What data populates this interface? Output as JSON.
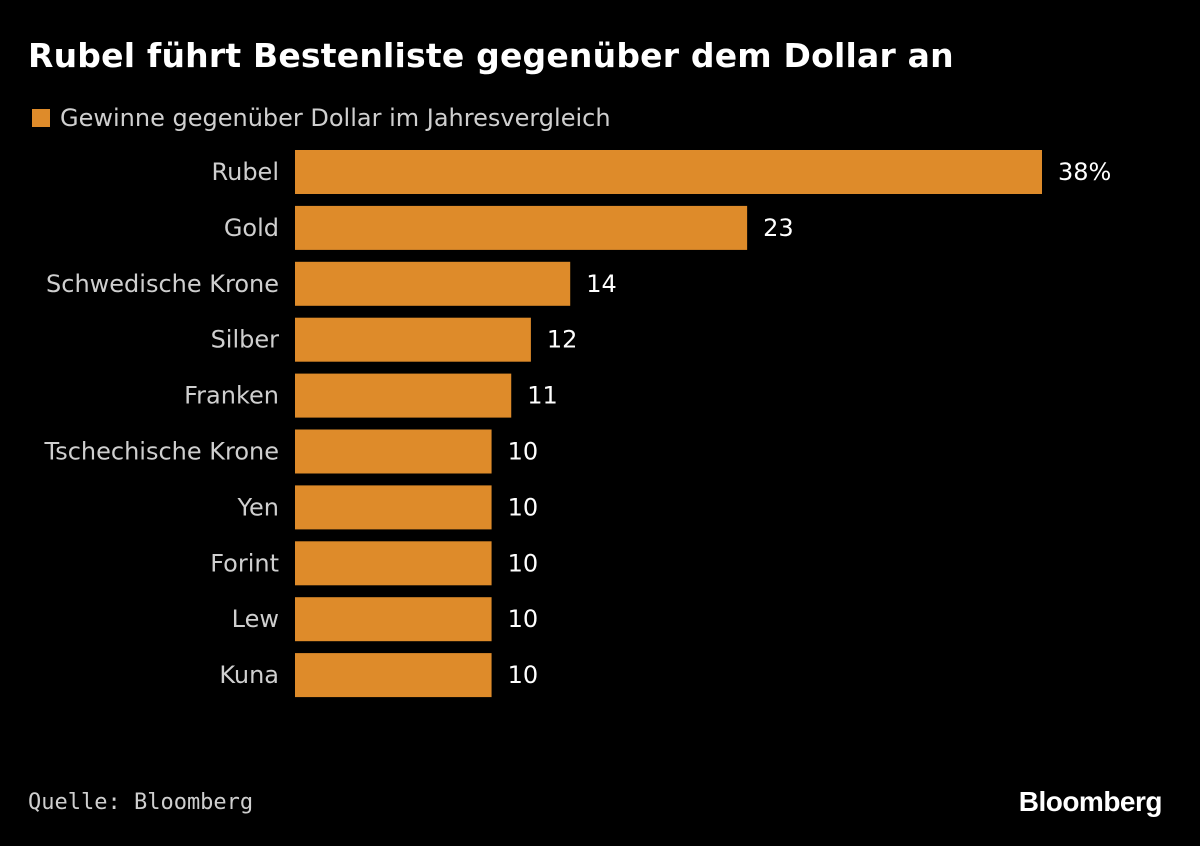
{
  "colors": {
    "background": "#000000",
    "bar": "#DE8B2A",
    "text": "#ffffff",
    "muted_text": "#cfcfcf"
  },
  "title": "Rubel führt Bestenliste gegenüber dem Dollar an",
  "legend": {
    "label": "Gewinne gegenüber Dollar im Jahresvergleich"
  },
  "source": "Quelle: Bloomberg",
  "brand": "Bloomberg",
  "chart_data": {
    "type": "bar",
    "orientation": "horizontal",
    "title": "Rubel führt Bestenliste gegenüber dem Dollar an",
    "categories": [
      "Rubel",
      "Gold",
      "Schwedische Krone",
      "Silber",
      "Franken",
      "Tschechische Krone",
      "Yen",
      "Forint",
      "Lew",
      "Kuna"
    ],
    "series": [
      {
        "name": "Gewinne gegenüber Dollar im Jahresvergleich",
        "values": [
          38,
          23,
          14,
          12,
          11,
          10,
          10,
          10,
          10,
          10
        ]
      }
    ],
    "value_labels": [
      "38%",
      "23",
      "14",
      "12",
      "11",
      "10",
      "10",
      "10",
      "10",
      "10"
    ],
    "xlim": [
      0,
      38
    ],
    "unit": "%",
    "grid": false,
    "legend_position": "top-left"
  }
}
